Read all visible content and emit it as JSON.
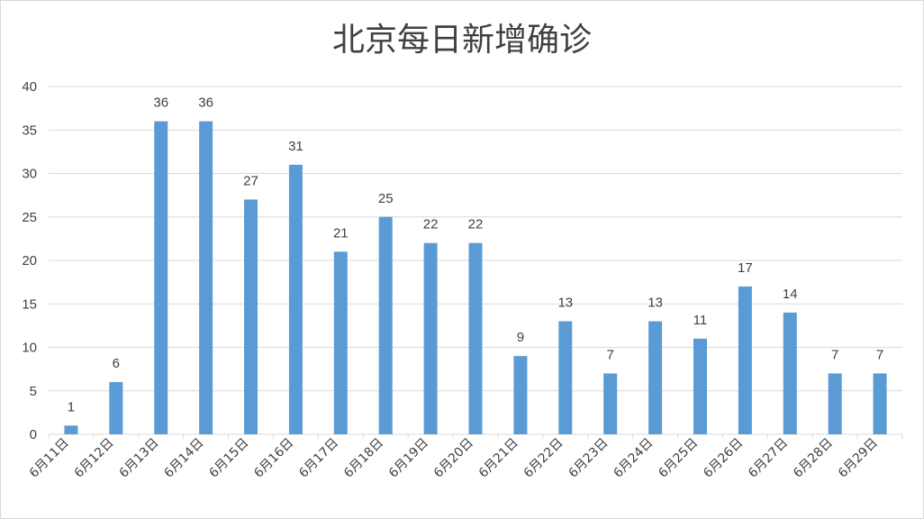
{
  "chart_data": {
    "type": "bar",
    "title": "北京每日新增确诊",
    "xlabel": "",
    "ylabel": "",
    "categories": [
      "6月11日",
      "6月12日",
      "6月13日",
      "6月14日",
      "6月15日",
      "6月16日",
      "6月17日",
      "6月18日",
      "6月19日",
      "6月20日",
      "6月21日",
      "6月22日",
      "6月23日",
      "6月24日",
      "6月25日",
      "6月26日",
      "6月27日",
      "6月28日",
      "6月29日"
    ],
    "values": [
      1,
      6,
      36,
      36,
      27,
      31,
      21,
      25,
      22,
      22,
      9,
      13,
      7,
      13,
      11,
      17,
      14,
      7,
      7
    ],
    "ylim": [
      0,
      40
    ],
    "yticks": [
      0,
      5,
      10,
      15,
      20,
      25,
      30,
      35,
      40
    ],
    "grid": true,
    "legend": "none",
    "data_labels": true,
    "colors": {
      "bar": "#5b9bd5",
      "grid": "#d9d9d9",
      "text": "#404040"
    }
  }
}
